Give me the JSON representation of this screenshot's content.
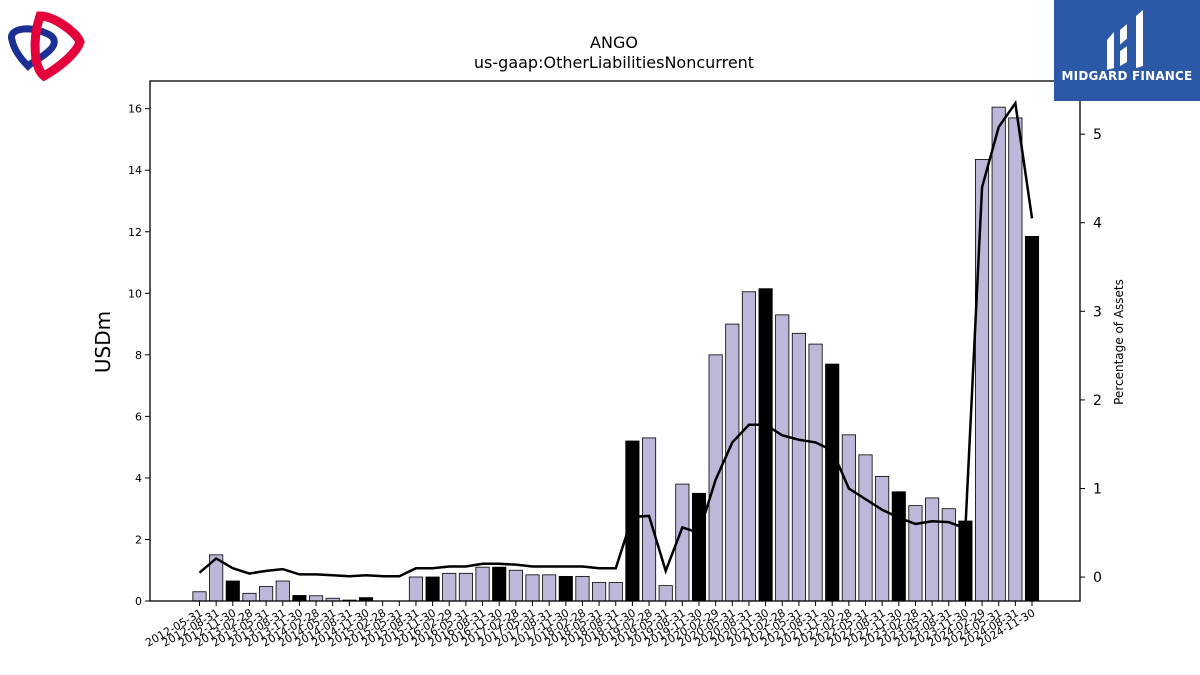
{
  "header": {
    "title": "ANGO",
    "subtitle": "us-gaap:OtherLiabilitiesNoncurrent"
  },
  "brand": {
    "name": "MIDGARD FINANCE",
    "color": "#2b59a8",
    "logo_left_colors": [
      "#e4003a",
      "#1c2f93"
    ]
  },
  "chart_data": {
    "type": "bar",
    "title": "ANGO",
    "subtitle": "us-gaap:OtherLiabilitiesNoncurrent",
    "ylabel": "USDm",
    "y2label": "Percentage of Assets",
    "ylim": [
      0,
      16.9
    ],
    "y2lim": [
      -0.27,
      5.6
    ],
    "yticks": [
      "0",
      "2",
      "4",
      "6",
      "8",
      "10",
      "12",
      "14",
      "16"
    ],
    "y2ticks": [
      "0",
      "1",
      "2",
      "3",
      "4",
      "5"
    ],
    "categories": [
      "2012-05-31",
      "2012-08-31",
      "2012-11-30",
      "2013-02-28",
      "2013-05-31",
      "2013-08-31",
      "2013-11-30",
      "2014-02-28",
      "2014-05-31",
      "2014-08-31",
      "2014-11-30",
      "2015-02-28",
      "2015-05-31",
      "2015-08-31",
      "2015-11-30",
      "2016-02-29",
      "2016-05-31",
      "2016-08-31",
      "2016-11-30",
      "2017-02-28",
      "2017-05-31",
      "2017-08-31",
      "2017-11-30",
      "2018-02-28",
      "2018-05-31",
      "2018-08-31",
      "2018-11-30",
      "2019-02-28",
      "2019-05-31",
      "2019-08-31",
      "2019-11-30",
      "2020-02-29",
      "2020-05-31",
      "2020-08-31",
      "2020-11-30",
      "2021-02-28",
      "2021-05-31",
      "2021-08-31",
      "2021-11-30",
      "2022-02-28",
      "2022-05-31",
      "2022-08-31",
      "2022-11-30",
      "2023-02-28",
      "2023-05-31",
      "2023-08-31",
      "2023-11-30",
      "2024-02-29",
      "2024-05-31",
      "2024-08-31",
      "2024-11-30"
    ],
    "series": [
      {
        "type": "bar",
        "values": [
          0.3,
          1.5,
          0.65,
          0.25,
          0.47,
          0.65,
          0.18,
          0.17,
          0.09,
          0.03,
          0.11,
          0.0,
          0.0,
          0.78,
          0.78,
          0.9,
          0.9,
          1.1,
          1.1,
          1.0,
          0.85,
          0.85,
          0.8,
          0.8,
          0.6,
          0.6,
          5.2,
          5.3,
          0.5,
          3.8,
          3.5,
          8.0,
          9.0,
          10.05,
          10.15,
          9.3,
          8.7,
          8.35,
          7.7,
          5.4,
          4.75,
          4.05,
          3.55,
          3.1,
          3.35,
          3.0,
          2.6,
          14.35,
          16.05,
          15.7,
          11.85
        ],
        "colors": [
          "#bcb8d9",
          "#000000"
        ],
        "highlight": [
          2,
          6,
          10,
          14,
          18,
          22,
          26,
          30,
          34,
          38,
          42,
          46,
          50
        ]
      },
      {
        "type": "line",
        "values": [
          0.05,
          0.21,
          0.1,
          0.04,
          0.07,
          0.09,
          0.03,
          0.03,
          0.02,
          0.01,
          0.02,
          0.01,
          0.01,
          0.1,
          0.1,
          0.12,
          0.12,
          0.15,
          0.15,
          0.14,
          0.12,
          0.12,
          0.12,
          0.12,
          0.1,
          0.1,
          0.68,
          0.69,
          0.07,
          0.56,
          0.5,
          1.1,
          1.52,
          1.72,
          1.72,
          1.6,
          1.55,
          1.52,
          1.43,
          1.0,
          0.88,
          0.76,
          0.67,
          0.6,
          0.63,
          0.62,
          0.55,
          4.4,
          5.08,
          5.35,
          4.05
        ],
        "color": "#000000"
      }
    ],
    "grid": false,
    "legend": "none"
  }
}
